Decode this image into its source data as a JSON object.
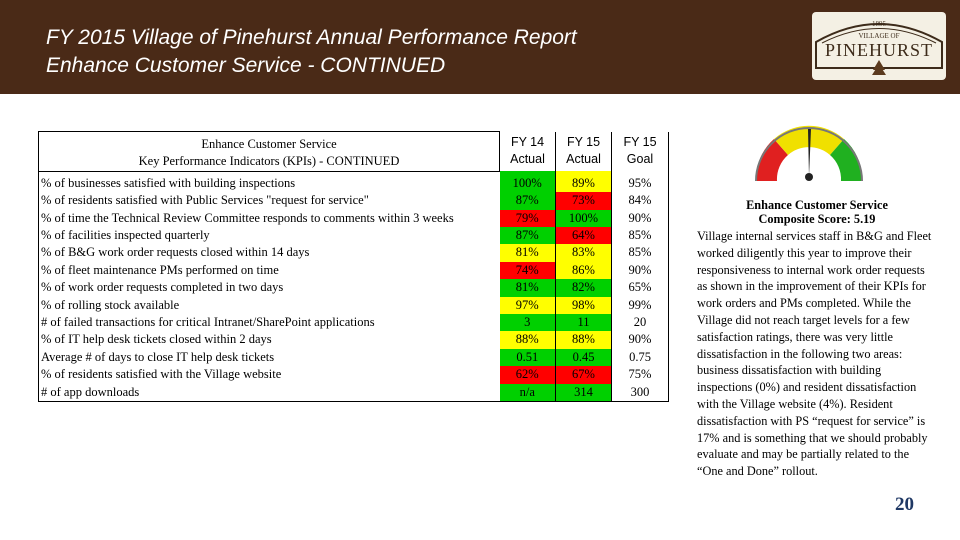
{
  "header": {
    "title_line1": "FY 2015 Village of Pinehurst Annual Performance Report",
    "title_line2": "Enhance Customer Service - CONTINUED",
    "logo": {
      "year": "1895",
      "small": "VILLAGE OF",
      "name": "PINEHURST"
    }
  },
  "table": {
    "head": {
      "line1": "Enhance Customer Service",
      "line2": "Key Performance Indicators (KPIs) - CONTINUED",
      "col1_a": "FY 14",
      "col1_b": "Actual",
      "col2_a": "FY 15",
      "col2_b": "Actual",
      "col3_a": "FY 15",
      "col3_b": "Goal"
    },
    "rows": [
      {
        "label": "% of businesses satisfied with building inspections",
        "fy14": "100%",
        "fy15": "89%",
        "goal": "95%",
        "c14": "g",
        "c15": "y"
      },
      {
        "label": "% of residents satisfied with Public Services \"request for service\"",
        "fy14": "87%",
        "fy15": "73%",
        "goal": "84%",
        "c14": "g",
        "c15": "r"
      },
      {
        "label": "% of time the Technical Review Committee responds to comments within 3 weeks",
        "fy14": "79%",
        "fy15": "100%",
        "goal": "90%",
        "c14": "r",
        "c15": "g"
      },
      {
        "label": "% of facilities inspected quarterly",
        "fy14": "87%",
        "fy15": "64%",
        "goal": "85%",
        "c14": "g",
        "c15": "r"
      },
      {
        "label": "% of B&G work order requests closed within 14 days",
        "fy14": "81%",
        "fy15": "83%",
        "goal": "85%",
        "c14": "y",
        "c15": "y"
      },
      {
        "label": "% of fleet maintenance PMs performed on time",
        "fy14": "74%",
        "fy15": "86%",
        "goal": "90%",
        "c14": "r",
        "c15": "y"
      },
      {
        "label": "% of work order requests completed in two days",
        "fy14": "81%",
        "fy15": "82%",
        "goal": "65%",
        "c14": "g",
        "c15": "g"
      },
      {
        "label": "% of rolling stock available",
        "fy14": "97%",
        "fy15": "98%",
        "goal": "99%",
        "c14": "y",
        "c15": "y"
      },
      {
        "label": "# of failed transactions for critical Intranet/SharePoint applications",
        "fy14": "3",
        "fy15": "11",
        "goal": "20",
        "c14": "g",
        "c15": "g"
      },
      {
        "label": "% of IT help desk tickets closed within 2 days",
        "fy14": "88%",
        "fy15": "88%",
        "goal": "90%",
        "c14": "y",
        "c15": "y"
      },
      {
        "label": "Average # of days to close IT help desk tickets",
        "fy14": "0.51",
        "fy15": "0.45",
        "goal": "0.75",
        "c14": "g",
        "c15": "g"
      },
      {
        "label": "% of residents satisfied with the Village website",
        "fy14": "62%",
        "fy15": "67%",
        "goal": "75%",
        "c14": "r",
        "c15": "r"
      },
      {
        "label": "# of app downloads",
        "fy14": "n/a",
        "fy15": "314",
        "goal": "300",
        "c14": "g",
        "c15": "g"
      }
    ]
  },
  "gauge": {
    "label": "score-gauge",
    "colors": {
      "red": "#e02020",
      "yellow": "#f0e000",
      "green": "#20b020"
    }
  },
  "sidebar": {
    "heading": "Enhance Customer Service",
    "score": "Composite Score:  5.19",
    "body": "Village internal services staff in B&G and Fleet worked diligently this year to improve their responsiveness to internal work order requests as shown in the improvement of their KPIs for work orders and PMs completed. While the Village did not reach target levels for a few satisfaction ratings, there was very little dissatisfaction in the following two areas: business dissatisfaction with building inspections (0%) and resident dissatisfaction with the Village website (4%).  Resident dissatisfaction with PS “request for service” is 17% and is something that we should probably evaluate and may be partially related to the “One and Done” rollout."
  },
  "page_number": "20",
  "colors": {
    "header_bg": "#4a2a17",
    "green": "#00d000",
    "yellow": "#ffff00",
    "red": "#ff0000"
  }
}
